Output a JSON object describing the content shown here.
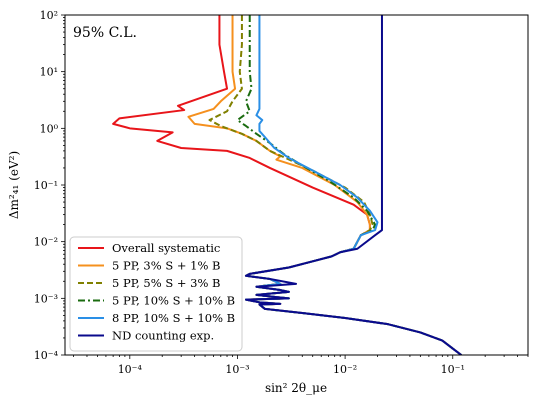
{
  "chart_data": {
    "type": "line",
    "annotation": "95% C.L.",
    "xlabel": "sin² 2θ_μe",
    "ylabel": "Δm²₄₁ (eV²)",
    "x_scale": "log",
    "y_scale": "log",
    "xlim": [
      2.5e-05,
      0.5
    ],
    "ylim": [
      0.0001,
      100
    ],
    "x_ticks": [
      {
        "value": 0.0001,
        "label": "10⁻⁴"
      },
      {
        "value": 0.001,
        "label": "10⁻³"
      },
      {
        "value": 0.01,
        "label": "10⁻²"
      },
      {
        "value": 0.1,
        "label": "10⁻¹"
      }
    ],
    "y_ticks": [
      {
        "value": 0.0001,
        "label": "10⁻⁴"
      },
      {
        "value": 0.001,
        "label": "10⁻³"
      },
      {
        "value": 0.01,
        "label": "10⁻²"
      },
      {
        "value": 0.1,
        "label": "10⁻¹"
      },
      {
        "value": 1,
        "label": "10⁰"
      },
      {
        "value": 10,
        "label": "10¹"
      },
      {
        "value": 100,
        "label": "10²"
      }
    ],
    "grid": false,
    "legend_position": "lower-left",
    "series": [
      {
        "name": "Overall systematic",
        "color": "#e8151a",
        "dash": "solid",
        "points": [
          [
            0.00068,
            100
          ],
          [
            0.00068,
            30
          ],
          [
            0.00075,
            10
          ],
          [
            0.0008,
            5
          ],
          [
            0.00028,
            2.5
          ],
          [
            0.00032,
            2.1
          ],
          [
            8e-05,
            1.5
          ],
          [
            7e-05,
            1.2
          ],
          [
            0.0001,
            1.0
          ],
          [
            0.00025,
            0.85
          ],
          [
            0.00018,
            0.6
          ],
          [
            0.0003,
            0.45
          ],
          [
            0.0008,
            0.4
          ],
          [
            0.0013,
            0.3
          ],
          [
            0.002,
            0.2
          ],
          [
            0.005,
            0.09
          ],
          [
            0.012,
            0.045
          ],
          [
            0.016,
            0.03
          ],
          [
            0.017,
            0.02
          ],
          [
            0.017,
            0.016
          ],
          [
            0.014,
            0.013
          ],
          [
            0.012,
            0.0075
          ],
          [
            0.009,
            0.0065
          ],
          [
            0.0075,
            0.0055
          ],
          [
            0.005,
            0.0045
          ],
          [
            0.003,
            0.0035
          ],
          [
            0.0013,
            0.0027
          ],
          [
            0.0012,
            0.0025
          ],
          [
            0.002,
            0.0022
          ],
          [
            0.0025,
            0.0018
          ],
          [
            0.0015,
            0.0016
          ],
          [
            0.0025,
            0.0014
          ],
          [
            0.003,
            0.0013
          ],
          [
            0.0015,
            0.00115
          ],
          [
            0.0023,
            0.00105
          ],
          [
            0.003,
            0.001
          ],
          [
            0.0012,
            0.00095
          ],
          [
            0.0016,
            0.00085
          ],
          [
            0.0025,
            0.0008
          ],
          [
            0.0016,
            0.00078
          ],
          [
            0.0018,
            0.00065
          ],
          [
            0.004,
            0.00055
          ],
          [
            0.01,
            0.00045
          ],
          [
            0.025,
            0.00035
          ],
          [
            0.05,
            0.00025
          ],
          [
            0.08,
            0.00018
          ],
          [
            0.1,
            0.00013
          ],
          [
            0.12,
            0.0001
          ]
        ]
      },
      {
        "name": "5 PP, 3% S + 1% B",
        "color": "#f5901e",
        "dash": "solid",
        "points": [
          [
            0.0009,
            100
          ],
          [
            0.0009,
            30
          ],
          [
            0.0009,
            10
          ],
          [
            0.00095,
            5
          ],
          [
            0.0007,
            3
          ],
          [
            0.0006,
            2.2
          ],
          [
            0.00035,
            1.6
          ],
          [
            0.0004,
            1.2
          ],
          [
            0.0008,
            1.0
          ],
          [
            0.0011,
            0.8
          ],
          [
            0.0015,
            0.6
          ],
          [
            0.002,
            0.4
          ],
          [
            0.0025,
            0.32
          ],
          [
            0.0023,
            0.28
          ],
          [
            0.004,
            0.2
          ],
          [
            0.008,
            0.1
          ],
          [
            0.013,
            0.05
          ],
          [
            0.016,
            0.03
          ],
          [
            0.017,
            0.02
          ],
          [
            0.017,
            0.016
          ],
          [
            0.014,
            0.013
          ],
          [
            0.012,
            0.0075
          ],
          [
            0.009,
            0.0065
          ],
          [
            0.0075,
            0.0055
          ],
          [
            0.005,
            0.0045
          ],
          [
            0.003,
            0.0035
          ],
          [
            0.0013,
            0.0027
          ],
          [
            0.0012,
            0.0025
          ],
          [
            0.002,
            0.0022
          ],
          [
            0.0025,
            0.0018
          ],
          [
            0.0015,
            0.0016
          ],
          [
            0.0025,
            0.0014
          ],
          [
            0.003,
            0.0013
          ],
          [
            0.0015,
            0.00115
          ],
          [
            0.0023,
            0.00105
          ],
          [
            0.003,
            0.001
          ],
          [
            0.0012,
            0.00095
          ],
          [
            0.0016,
            0.00085
          ],
          [
            0.0025,
            0.0008
          ],
          [
            0.0016,
            0.00078
          ],
          [
            0.0018,
            0.00065
          ],
          [
            0.004,
            0.00055
          ],
          [
            0.01,
            0.00045
          ],
          [
            0.025,
            0.00035
          ],
          [
            0.05,
            0.00025
          ],
          [
            0.08,
            0.00018
          ],
          [
            0.1,
            0.00013
          ],
          [
            0.12,
            0.0001
          ]
        ]
      },
      {
        "name": "5 PP, 5% S + 3% B",
        "color": "#808000",
        "dash": "dashed",
        "points": [
          [
            0.0011,
            100
          ],
          [
            0.0011,
            30
          ],
          [
            0.00105,
            10
          ],
          [
            0.0011,
            5
          ],
          [
            0.0009,
            3
          ],
          [
            0.0008,
            2
          ],
          [
            0.00055,
            1.4
          ],
          [
            0.0007,
            1.1
          ],
          [
            0.0011,
            0.8
          ],
          [
            0.0015,
            0.6
          ],
          [
            0.002,
            0.4
          ],
          [
            0.0028,
            0.3
          ],
          [
            0.005,
            0.18
          ],
          [
            0.01,
            0.09
          ],
          [
            0.015,
            0.05
          ],
          [
            0.017,
            0.03
          ],
          [
            0.018,
            0.02
          ],
          [
            0.017,
            0.016
          ],
          [
            0.014,
            0.013
          ],
          [
            0.012,
            0.0075
          ],
          [
            0.009,
            0.0065
          ],
          [
            0.0075,
            0.0055
          ],
          [
            0.005,
            0.0045
          ],
          [
            0.003,
            0.0035
          ],
          [
            0.0013,
            0.0027
          ],
          [
            0.0012,
            0.0025
          ],
          [
            0.002,
            0.0022
          ],
          [
            0.0025,
            0.0018
          ],
          [
            0.0015,
            0.0016
          ],
          [
            0.0025,
            0.0014
          ],
          [
            0.003,
            0.0013
          ],
          [
            0.0015,
            0.00115
          ],
          [
            0.0023,
            0.00105
          ],
          [
            0.003,
            0.001
          ],
          [
            0.0012,
            0.00095
          ],
          [
            0.0016,
            0.00085
          ],
          [
            0.0025,
            0.0008
          ],
          [
            0.0016,
            0.00078
          ],
          [
            0.0018,
            0.00065
          ],
          [
            0.004,
            0.00055
          ],
          [
            0.01,
            0.00045
          ],
          [
            0.025,
            0.00035
          ],
          [
            0.05,
            0.00025
          ],
          [
            0.08,
            0.00018
          ],
          [
            0.1,
            0.00013
          ],
          [
            0.12,
            0.0001
          ]
        ]
      },
      {
        "name": "5 PP, 10% S + 10% B",
        "color": "#1a6b0f",
        "dash": "dashdot",
        "points": [
          [
            0.0013,
            100
          ],
          [
            0.0013,
            30
          ],
          [
            0.0013,
            10
          ],
          [
            0.00135,
            5
          ],
          [
            0.0012,
            3
          ],
          [
            0.0013,
            2
          ],
          [
            0.001,
            1.4
          ],
          [
            0.0012,
            1.1
          ],
          [
            0.0015,
            0.8
          ],
          [
            0.002,
            0.55
          ],
          [
            0.0027,
            0.35
          ],
          [
            0.004,
            0.22
          ],
          [
            0.007,
            0.12
          ],
          [
            0.012,
            0.06
          ],
          [
            0.016,
            0.035
          ],
          [
            0.019,
            0.02
          ],
          [
            0.018,
            0.016
          ],
          [
            0.014,
            0.013
          ],
          [
            0.012,
            0.0075
          ],
          [
            0.009,
            0.0065
          ],
          [
            0.0075,
            0.0055
          ],
          [
            0.005,
            0.0045
          ],
          [
            0.003,
            0.0035
          ],
          [
            0.0013,
            0.0027
          ],
          [
            0.0012,
            0.0025
          ],
          [
            0.002,
            0.0022
          ],
          [
            0.0025,
            0.0018
          ],
          [
            0.0015,
            0.0016
          ],
          [
            0.0025,
            0.0014
          ],
          [
            0.003,
            0.0013
          ],
          [
            0.0015,
            0.00115
          ],
          [
            0.0023,
            0.00105
          ],
          [
            0.003,
            0.001
          ],
          [
            0.0012,
            0.00095
          ],
          [
            0.0016,
            0.00085
          ],
          [
            0.0025,
            0.0008
          ],
          [
            0.0016,
            0.00078
          ],
          [
            0.0018,
            0.00065
          ],
          [
            0.004,
            0.00055
          ],
          [
            0.01,
            0.00045
          ],
          [
            0.025,
            0.00035
          ],
          [
            0.05,
            0.00025
          ],
          [
            0.08,
            0.00018
          ],
          [
            0.1,
            0.00013
          ],
          [
            0.12,
            0.0001
          ]
        ]
      },
      {
        "name": "8 PP, 10% S + 10% B",
        "color": "#2a8fe6",
        "dash": "solid",
        "points": [
          [
            0.0016,
            100
          ],
          [
            0.0016,
            30
          ],
          [
            0.0016,
            10
          ],
          [
            0.0016,
            5
          ],
          [
            0.0016,
            3
          ],
          [
            0.0016,
            2.2
          ],
          [
            0.0015,
            1.7
          ],
          [
            0.0017,
            1.4
          ],
          [
            0.0016,
            1.2
          ],
          [
            0.0016,
            0.9
          ],
          [
            0.0018,
            0.7
          ],
          [
            0.0022,
            0.45
          ],
          [
            0.003,
            0.3
          ],
          [
            0.005,
            0.18
          ],
          [
            0.009,
            0.1
          ],
          [
            0.013,
            0.06
          ],
          [
            0.017,
            0.035
          ],
          [
            0.02,
            0.022
          ],
          [
            0.019,
            0.016
          ],
          [
            0.014,
            0.013
          ],
          [
            0.012,
            0.0075
          ],
          [
            0.009,
            0.0065
          ],
          [
            0.0075,
            0.0055
          ],
          [
            0.005,
            0.0045
          ],
          [
            0.003,
            0.0035
          ],
          [
            0.0013,
            0.0027
          ],
          [
            0.0012,
            0.0025
          ],
          [
            0.002,
            0.0022
          ],
          [
            0.0025,
            0.0018
          ],
          [
            0.0015,
            0.0016
          ],
          [
            0.0025,
            0.0014
          ],
          [
            0.003,
            0.0013
          ],
          [
            0.0015,
            0.00115
          ],
          [
            0.0023,
            0.00105
          ],
          [
            0.003,
            0.001
          ],
          [
            0.0012,
            0.00095
          ],
          [
            0.0016,
            0.00085
          ],
          [
            0.0025,
            0.0008
          ],
          [
            0.0016,
            0.00078
          ],
          [
            0.0018,
            0.00065
          ],
          [
            0.004,
            0.00055
          ],
          [
            0.01,
            0.00045
          ],
          [
            0.025,
            0.00035
          ],
          [
            0.05,
            0.00025
          ],
          [
            0.08,
            0.00018
          ],
          [
            0.1,
            0.00013
          ],
          [
            0.12,
            0.0001
          ]
        ]
      },
      {
        "name": "ND counting exp.",
        "color": "#0a0a8c",
        "dash": "solid",
        "points": [
          [
            0.022,
            100
          ],
          [
            0.022,
            0.02
          ],
          [
            0.022,
            0.016
          ],
          [
            0.019,
            0.013
          ],
          [
            0.013,
            0.0075
          ],
          [
            0.009,
            0.0065
          ],
          [
            0.0075,
            0.0055
          ],
          [
            0.005,
            0.0045
          ],
          [
            0.003,
            0.0035
          ],
          [
            0.0013,
            0.0027
          ],
          [
            0.0012,
            0.0025
          ],
          [
            0.002,
            0.0022
          ],
          [
            0.0035,
            0.0018
          ],
          [
            0.0015,
            0.0016
          ],
          [
            0.0025,
            0.0014
          ],
          [
            0.003,
            0.0013
          ],
          [
            0.0015,
            0.00115
          ],
          [
            0.0023,
            0.00105
          ],
          [
            0.003,
            0.001
          ],
          [
            0.0012,
            0.00095
          ],
          [
            0.0016,
            0.00085
          ],
          [
            0.0025,
            0.0008
          ],
          [
            0.0016,
            0.00078
          ],
          [
            0.0018,
            0.00065
          ],
          [
            0.004,
            0.00055
          ],
          [
            0.01,
            0.00045
          ],
          [
            0.025,
            0.00035
          ],
          [
            0.05,
            0.00025
          ],
          [
            0.08,
            0.00018
          ],
          [
            0.1,
            0.00013
          ],
          [
            0.12,
            0.0001
          ]
        ]
      }
    ]
  }
}
